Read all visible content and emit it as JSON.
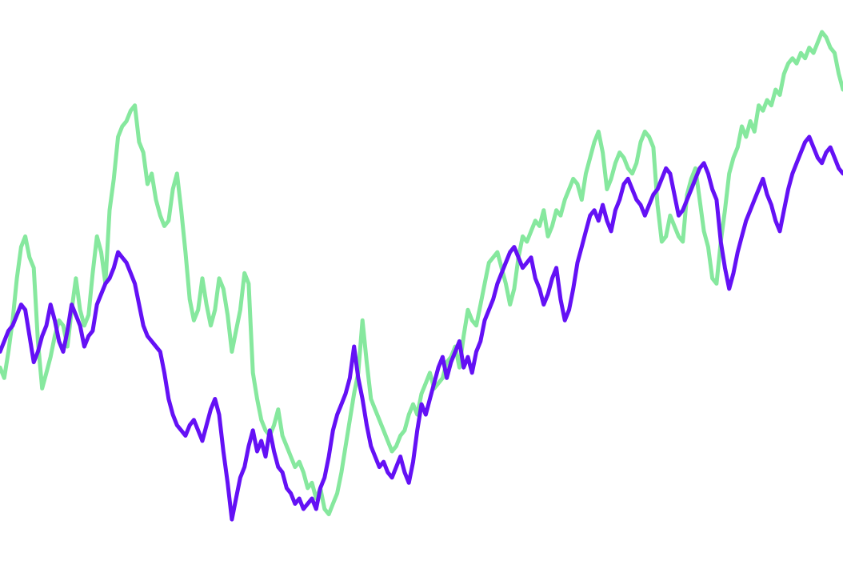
{
  "chart_data": {
    "type": "line",
    "title": "",
    "xlabel": "",
    "ylabel": "",
    "grid": false,
    "legend": "none",
    "axes_visible": false,
    "xlim": [
      0,
      100
    ],
    "ylim": [
      0,
      100
    ],
    "series": [
      {
        "color": "#86E89E",
        "x": [
          0,
          0.5,
          1,
          1.5,
          2,
          2.5,
          3,
          3.5,
          4,
          4.5,
          5,
          5.5,
          6,
          6.5,
          7,
          7.5,
          8,
          8.5,
          9,
          9.5,
          10,
          10.5,
          11,
          11.5,
          12,
          12.5,
          13,
          13.5,
          14,
          14.5,
          15,
          15.5,
          16,
          16.5,
          17,
          17.5,
          18,
          18.5,
          19,
          19.5,
          20,
          20.5,
          21,
          21.5,
          22,
          22.5,
          23,
          23.5,
          24,
          24.5,
          25,
          25.5,
          26,
          26.5,
          27,
          27.5,
          28,
          28.5,
          29,
          29.5,
          30,
          30.5,
          31,
          31.5,
          32,
          32.5,
          33,
          33.5,
          34,
          34.5,
          35,
          35.5,
          36,
          36.5,
          37,
          37.5,
          38,
          38.5,
          39,
          39.5,
          40,
          40.5,
          41,
          41.5,
          42,
          42.5,
          43,
          43.5,
          44,
          44.5,
          45,
          45.5,
          46,
          46.5,
          47,
          47.5,
          48,
          48.5,
          49,
          49.5,
          50,
          50.5,
          51,
          51.5,
          52,
          52.5,
          53,
          53.5,
          54,
          54.5,
          55,
          55.5,
          56,
          56.5,
          57,
          57.5,
          58,
          58.5,
          59,
          59.5,
          60,
          60.5,
          61,
          61.5,
          62,
          62.5,
          63,
          63.5,
          64,
          64.5,
          65,
          65.5,
          66,
          66.5,
          67,
          67.5,
          68,
          68.5,
          69,
          69.5,
          70,
          70.5,
          71,
          71.5,
          72,
          72.5,
          73,
          73.5,
          74,
          74.5,
          75,
          75.5,
          76,
          76.5,
          77,
          77.5,
          78,
          78.5,
          79,
          79.5,
          80,
          80.5,
          81,
          81.5,
          82,
          82.5,
          83,
          83.5,
          84,
          84.5,
          85,
          85.5,
          86,
          86.5,
          87,
          87.5,
          88,
          88.5,
          89,
          89.5,
          90,
          90.5,
          91,
          91.5,
          92,
          92.5,
          93,
          93.5,
          94,
          94.5,
          95,
          95.5,
          96,
          96.5,
          97,
          97.5,
          98,
          98.5,
          99,
          99.5,
          100
        ],
        "y": [
          36,
          34,
          39,
          45,
          53,
          59,
          61,
          57,
          55,
          41,
          32,
          35,
          38,
          42,
          45,
          44,
          40,
          47,
          53,
          47,
          44,
          46,
          54,
          61,
          58,
          52,
          66,
          72,
          80,
          82,
          83,
          85,
          86,
          79,
          77,
          71,
          73,
          68,
          65,
          63,
          64,
          70,
          73,
          66,
          58,
          49,
          45,
          47,
          53,
          48,
          44,
          47,
          53,
          51,
          46,
          39,
          43,
          47,
          54,
          52,
          35,
          30,
          26,
          24,
          23,
          25,
          28,
          23,
          21,
          19,
          17,
          18,
          16,
          13,
          14,
          11,
          13,
          9,
          8,
          10,
          12,
          16,
          21,
          26,
          31,
          35,
          45,
          37,
          30,
          28,
          26,
          24,
          22,
          20,
          21,
          23,
          24,
          27,
          29,
          27,
          31,
          33,
          35,
          32,
          33,
          34,
          37,
          38,
          40,
          36,
          42,
          47,
          45,
          44,
          48,
          52,
          56,
          57,
          58,
          55,
          52,
          48,
          51,
          57,
          61,
          60,
          62,
          64,
          63,
          66,
          61,
          63,
          66,
          65,
          68,
          70,
          72,
          71,
          68,
          73,
          76,
          79,
          81,
          77,
          70,
          72,
          75,
          77,
          76,
          74,
          73,
          75,
          79,
          81,
          80,
          78,
          67,
          60,
          61,
          65,
          63,
          61,
          60,
          69,
          72,
          74,
          68,
          62,
          59,
          53,
          52,
          60,
          66,
          73,
          76,
          78,
          82,
          80,
          83,
          81,
          86,
          85,
          87,
          86,
          89,
          88,
          92,
          94,
          95,
          94,
          96,
          95,
          97,
          96,
          98,
          100,
          99,
          97,
          96,
          92,
          89
        ]
      },
      {
        "color": "#6411F5",
        "x": [
          0,
          0.5,
          1,
          1.5,
          2,
          2.5,
          3,
          3.5,
          4,
          4.5,
          5,
          5.5,
          6,
          6.5,
          7,
          7.5,
          8,
          8.5,
          9,
          9.5,
          10,
          10.5,
          11,
          11.5,
          12,
          12.5,
          13,
          13.5,
          14,
          14.5,
          15,
          15.5,
          16,
          16.5,
          17,
          17.5,
          18,
          18.5,
          19,
          19.5,
          20,
          20.5,
          21,
          21.5,
          22,
          22.5,
          23,
          23.5,
          24,
          24.5,
          25,
          25.5,
          26,
          26.5,
          27,
          27.5,
          28,
          28.5,
          29,
          29.5,
          30,
          30.5,
          31,
          31.5,
          32,
          32.5,
          33,
          33.5,
          34,
          34.5,
          35,
          35.5,
          36,
          36.5,
          37,
          37.5,
          38,
          38.5,
          39,
          39.5,
          40,
          40.5,
          41,
          41.5,
          42,
          42.5,
          43,
          43.5,
          44,
          44.5,
          45,
          45.5,
          46,
          46.5,
          47,
          47.5,
          48,
          48.5,
          49,
          49.5,
          50,
          50.5,
          51,
          51.5,
          52,
          52.5,
          53,
          53.5,
          54,
          54.5,
          55,
          55.5,
          56,
          56.5,
          57,
          57.5,
          58,
          58.5,
          59,
          59.5,
          60,
          60.5,
          61,
          61.5,
          62,
          62.5,
          63,
          63.5,
          64,
          64.5,
          65,
          65.5,
          66,
          66.5,
          67,
          67.5,
          68,
          68.5,
          69,
          69.5,
          70,
          70.5,
          71,
          71.5,
          72,
          72.5,
          73,
          73.5,
          74,
          74.5,
          75,
          75.5,
          76,
          76.5,
          77,
          77.5,
          78,
          78.5,
          79,
          79.5,
          80,
          80.5,
          81,
          81.5,
          82,
          82.5,
          83,
          83.5,
          84,
          84.5,
          85,
          85.5,
          86,
          86.5,
          87,
          87.5,
          88,
          88.5,
          89,
          89.5,
          90,
          90.5,
          91,
          91.5,
          92,
          92.5,
          93,
          93.5,
          94,
          94.5,
          95,
          95.5,
          96,
          96.5,
          97,
          97.5,
          98,
          98.5,
          99,
          99.5,
          100
        ],
        "y": [
          39,
          41,
          43,
          44,
          46,
          48,
          47,
          42,
          37,
          39,
          42,
          44,
          48,
          45,
          41,
          39,
          43,
          48,
          46,
          44,
          40,
          42,
          43,
          48,
          50,
          52,
          53,
          55,
          58,
          57,
          56,
          54,
          52,
          48,
          44,
          42,
          41,
          40,
          39,
          35,
          30,
          27,
          25,
          24,
          23,
          25,
          26,
          24,
          22,
          25,
          28,
          30,
          27,
          20,
          14,
          7,
          11,
          15,
          17,
          21,
          24,
          20,
          22,
          19,
          24,
          20,
          17,
          16,
          13,
          12,
          10,
          11,
          9,
          10,
          11,
          9,
          13,
          15,
          19,
          24,
          27,
          29,
          31,
          34,
          40,
          34,
          30,
          25,
          21,
          19,
          17,
          18,
          16,
          15,
          17,
          19,
          16,
          14,
          18,
          24,
          29,
          27,
          30,
          33,
          36,
          38,
          34,
          37,
          39,
          41,
          36,
          38,
          35,
          39,
          41,
          45,
          47,
          49,
          52,
          54,
          56,
          58,
          59,
          57,
          55,
          56,
          57,
          53,
          51,
          48,
          50,
          53,
          55,
          49,
          45,
          47,
          51,
          56,
          59,
          62,
          65,
          66,
          64,
          67,
          64,
          62,
          66,
          68,
          71,
          72,
          70,
          68,
          67,
          65,
          67,
          69,
          70,
          72,
          74,
          73,
          69,
          65,
          66,
          68,
          70,
          72,
          74,
          75,
          73,
          70,
          68,
          60,
          55,
          51,
          54,
          58,
          61,
          64,
          66,
          68,
          70,
          72,
          69,
          67,
          64,
          62,
          66,
          70,
          73,
          75,
          77,
          79,
          80,
          78,
          76,
          75,
          77,
          78,
          76,
          74,
          73
        ]
      }
    ]
  }
}
